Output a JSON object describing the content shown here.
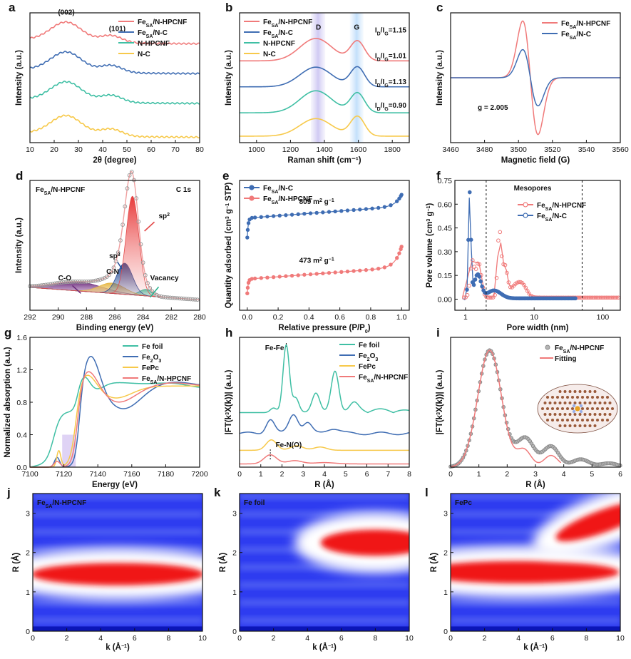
{
  "colors": {
    "red": "#f07a7a",
    "blue": "#3f6db3",
    "teal": "#3fbfa4",
    "yellow": "#f7c94a",
    "gray": "#9a9a9a"
  },
  "chart_data": [
    {
      "id": "a",
      "label": "a",
      "type": "line",
      "xlabel": "2θ (degree)",
      "ylabel": "Intensity (a.u.)",
      "xlim": [
        10,
        80
      ],
      "xticks": [
        10,
        20,
        30,
        40,
        50,
        60,
        70,
        80
      ],
      "series": [
        {
          "name": "FeSA/N-HPCNF",
          "color": "red"
        },
        {
          "name": "FeSA/N-C",
          "color": "blue"
        },
        {
          "name": "N-HPCNF",
          "color": "teal"
        },
        {
          "name": "N-C",
          "color": "yellow"
        }
      ],
      "annotations": [
        "(002)",
        "(101)"
      ]
    },
    {
      "id": "b",
      "label": "b",
      "type": "line",
      "xlabel": "Raman shift (cm⁻¹)",
      "ylabel": "Intensity (a.u.)",
      "xlim": [
        900,
        1900
      ],
      "xticks": [
        1000,
        1200,
        1400,
        1600,
        1800
      ],
      "series": [
        {
          "name": "FeSA/N-HPCNF",
          "color": "red"
        },
        {
          "name": "FeSA/N-C",
          "color": "blue"
        },
        {
          "name": "N-HPCNF",
          "color": "teal"
        },
        {
          "name": "N-C",
          "color": "yellow"
        }
      ],
      "bands": [
        "D",
        "G"
      ],
      "ratios": [
        "ID/IG=1.15",
        "ID/IG=1.01",
        "ID/IG=1.13",
        "ID/IG=0.90"
      ]
    },
    {
      "id": "c",
      "label": "c",
      "type": "line",
      "xlabel": "Magnetic field (G)",
      "ylabel": "Intensity (a.u.)",
      "xlim": [
        3460,
        3560
      ],
      "xticks": [
        3460,
        3480,
        3500,
        3520,
        3540,
        3560
      ],
      "series": [
        {
          "name": "FeSA/N-HPCNF",
          "color": "red"
        },
        {
          "name": "FeSA/N-C",
          "color": "blue"
        }
      ],
      "annotation": "g = 2.005"
    },
    {
      "id": "d",
      "label": "d",
      "type": "line",
      "xlabel": "Binding energy (eV)",
      "ylabel": "Intensity (a.u.)",
      "xlim": [
        292,
        280
      ],
      "xticks": [
        292,
        290,
        288,
        286,
        284,
        282,
        280
      ],
      "sample": "FeSA/N-HPCNF",
      "core": "C 1s",
      "peaks": [
        "sp²",
        "sp³",
        "C-N",
        "C-O",
        "Vacancy"
      ]
    },
    {
      "id": "e",
      "label": "e",
      "type": "line",
      "xlabel": "Relative pressure (P/P₀)",
      "ylabel": "Quantity adsorbed (cm³ g⁻¹ STP)",
      "xlim": [
        -0.05,
        1.05
      ],
      "xticks": [
        0.0,
        0.2,
        0.4,
        0.6,
        0.8,
        1.0
      ],
      "series": [
        {
          "name": "FeSA/N-C",
          "color": "blue"
        },
        {
          "name": "FeSA/N-HPCNF",
          "color": "red"
        }
      ],
      "surface_areas": [
        "809 m² g⁻¹",
        "473 m² g⁻¹"
      ]
    },
    {
      "id": "f",
      "label": "f",
      "type": "line",
      "xlabel": "Pore width (nm)",
      "ylabel": "Pore volume (cm³ g⁻¹)",
      "xscale": "log",
      "xlim": [
        0.7,
        180
      ],
      "ylim": [
        -0.07,
        0.75
      ],
      "yticks": [
        0.0,
        0.15,
        0.3,
        0.45,
        0.6,
        0.75
      ],
      "series": [
        {
          "name": "FeSA/N-HPCNF",
          "color": "red"
        },
        {
          "name": "FeSA/N-C",
          "color": "blue"
        }
      ],
      "region_label": "Mesopores",
      "dashed_lines_at": [
        2,
        50
      ]
    },
    {
      "id": "g",
      "label": "g",
      "type": "line",
      "xlabel": "Energy (eV)",
      "ylabel": "Normalized absorption (a.u.)",
      "xlim": [
        7100,
        7200
      ],
      "ylim": [
        0,
        1.6
      ],
      "xticks": [
        7100,
        7120,
        7140,
        7160,
        7180,
        7200
      ],
      "yticks": [
        0.0,
        0.4,
        0.8,
        1.2,
        1.6
      ],
      "series": [
        {
          "name": "Fe foil",
          "color": "teal"
        },
        {
          "name": "Fe2O3",
          "color": "blue"
        },
        {
          "name": "FePc",
          "color": "yellow"
        },
        {
          "name": "FeSA/N-HPCNF",
          "color": "red"
        }
      ]
    },
    {
      "id": "h",
      "label": "h",
      "type": "line",
      "xlabel": "R (Å)",
      "ylabel": "|FT(k³X(k))| (a.u.)",
      "xlim": [
        0,
        8
      ],
      "xticks": [
        0,
        1,
        2,
        3,
        4,
        5,
        6,
        7,
        8
      ],
      "series": [
        {
          "name": "Fe foil",
          "color": "teal"
        },
        {
          "name": "Fe2O3",
          "color": "blue"
        },
        {
          "name": "FePc",
          "color": "yellow"
        },
        {
          "name": "FeSA/N-HPCNF",
          "color": "red"
        }
      ],
      "annotations": [
        "Fe-Fe",
        "Fe-N(O)"
      ]
    },
    {
      "id": "i",
      "label": "i",
      "type": "line",
      "xlabel": "R (Å)",
      "ylabel": "|FT(k³X(k))| (a.u.)",
      "xlim": [
        0,
        6
      ],
      "xticks": [
        0,
        1,
        2,
        3,
        4,
        5,
        6
      ],
      "series": [
        {
          "name": "FeSA/N-HPCNF",
          "color": "gray"
        },
        {
          "name": "Fitting",
          "color": "red"
        }
      ]
    },
    {
      "id": "j",
      "label": "j",
      "type": "heatmap",
      "title": "FeSA/N-HPCNF",
      "xlabel": "k (Å⁻¹)",
      "ylabel": "R (Å)",
      "xlim": [
        0,
        10
      ],
      "ylim": [
        0,
        3.5
      ],
      "xticks": [
        0,
        2,
        4,
        6,
        8,
        10
      ],
      "yticks": [
        0,
        1,
        2,
        3
      ],
      "maxima": [
        {
          "k": 5,
          "R": 1.45
        }
      ]
    },
    {
      "id": "k",
      "label": "k",
      "type": "heatmap",
      "title": "Fe foil",
      "xlabel": "k (Å⁻¹)",
      "ylabel": "R (Å)",
      "xlim": [
        0,
        10
      ],
      "ylim": [
        0,
        3.5
      ],
      "xticks": [
        0,
        2,
        4,
        6,
        8,
        10
      ],
      "yticks": [
        0,
        1,
        2,
        3
      ],
      "maxima": [
        {
          "k": 8,
          "R": 2.25
        }
      ]
    },
    {
      "id": "l",
      "label": "l",
      "type": "heatmap",
      "title": "FePc",
      "xlabel": "k (Å⁻¹)",
      "ylabel": "R (Å)",
      "xlim": [
        0,
        10
      ],
      "ylim": [
        0,
        3.5
      ],
      "xticks": [
        0,
        2,
        4,
        6,
        8,
        10
      ],
      "yticks": [
        0,
        1,
        2,
        3
      ],
      "maxima": [
        {
          "k": 4,
          "R": 1.5
        },
        {
          "k": 9,
          "R": 2.9
        }
      ]
    }
  ]
}
